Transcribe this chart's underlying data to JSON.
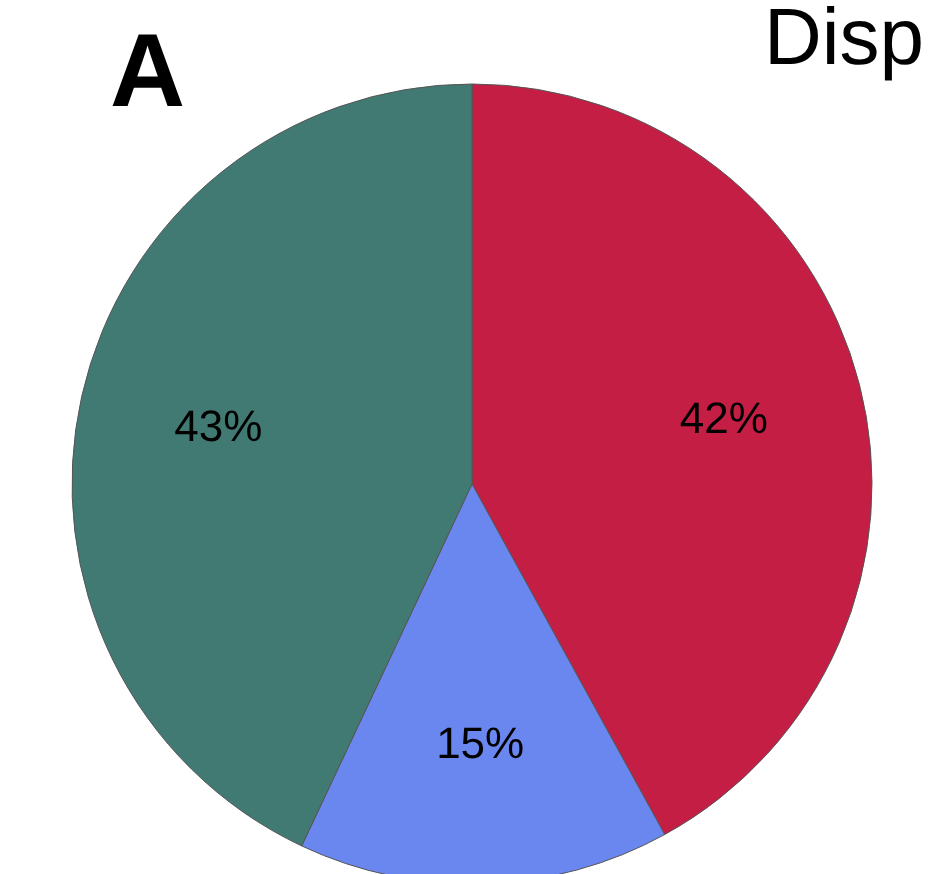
{
  "chart_data": {
    "type": "pie",
    "title": "Disp",
    "annotations": [
      "A"
    ],
    "categories": [
      null,
      null,
      null
    ],
    "values": [
      42,
      15,
      43
    ],
    "colors": [
      "#c41e45",
      "#6a87f0",
      "#417a72"
    ],
    "value_labels": [
      "42%",
      "15%",
      "43%"
    ],
    "legend": false
  }
}
